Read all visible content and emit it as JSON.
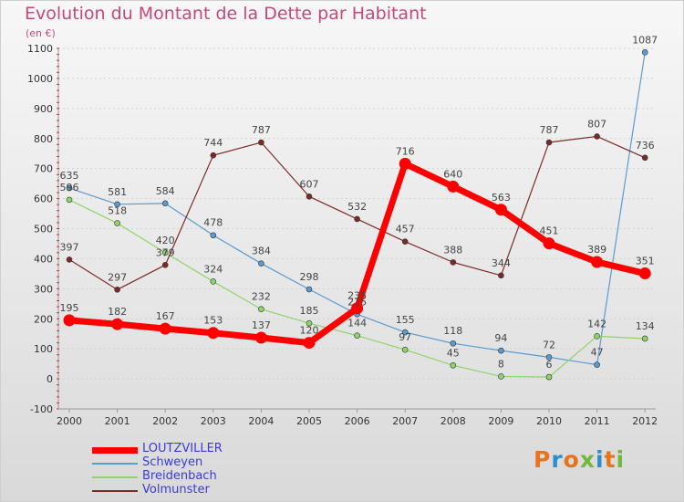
{
  "header": {
    "title": "Evolution du Montant de la Dette par Habitant",
    "unit": "(en €)"
  },
  "brand": {
    "text": "Proxiti",
    "colors": [
      "#e8731a",
      "#2a8ed1",
      "#e8731a",
      "#73b83b",
      "#2a8ed1",
      "#e8731a",
      "#73b83b"
    ]
  },
  "chart_data": {
    "type": "line",
    "title": "Evolution du Montant de la Dette par Habitant",
    "ylabel": "(en €)",
    "xlabel": "",
    "categories": [
      "2000",
      "2001",
      "2002",
      "2003",
      "2004",
      "2005",
      "2006",
      "2007",
      "2008",
      "2009",
      "2010",
      "2011",
      "2012"
    ],
    "ylim": [
      -100,
      1100
    ],
    "yticks": [
      -100,
      0,
      100,
      200,
      300,
      400,
      500,
      600,
      700,
      800,
      900,
      1000,
      1100
    ],
    "grid": "horizontal",
    "legend_position": "bottom-left",
    "series": [
      {
        "name": "LOUTZVILLER",
        "color": "#ff0000",
        "emphasis": true,
        "values": [
          195,
          182,
          167,
          153,
          137,
          120,
          235,
          716,
          640,
          563,
          451,
          389,
          351
        ],
        "labels": [
          "195",
          "182",
          "167",
          "153",
          "137",
          "120",
          "235",
          "716",
          "640",
          "563",
          "451",
          "389",
          "351"
        ]
      },
      {
        "name": "Schweyen",
        "color": "#5b9bd0",
        "emphasis": false,
        "values": [
          635,
          581,
          584,
          478,
          384,
          298,
          215,
          155,
          118,
          94,
          72,
          47,
          1087
        ],
        "labels": [
          "635",
          "581",
          "584",
          "478",
          "384",
          "298",
          "215",
          "155",
          "118",
          "94",
          "72",
          "47",
          "1087"
        ]
      },
      {
        "name": "Breidenbach",
        "color": "#8fd46a",
        "emphasis": false,
        "values": [
          596,
          518,
          420,
          324,
          232,
          185,
          144,
          97,
          45,
          8,
          6,
          142,
          134
        ],
        "labels": [
          "596",
          "518",
          "420",
          "324",
          "232",
          "185",
          "144",
          "97",
          "45",
          "8",
          "6",
          "142",
          "134"
        ]
      },
      {
        "name": "Volmunster",
        "color": "#7b2a2a",
        "emphasis": false,
        "values": [
          397,
          297,
          379,
          744,
          787,
          607,
          532,
          457,
          388,
          344,
          787,
          807,
          736
        ],
        "labels": [
          "397",
          "297",
          "379",
          "744",
          "787",
          "607",
          "532",
          "457",
          "388",
          "344",
          "787",
          "807",
          "736"
        ]
      }
    ]
  }
}
